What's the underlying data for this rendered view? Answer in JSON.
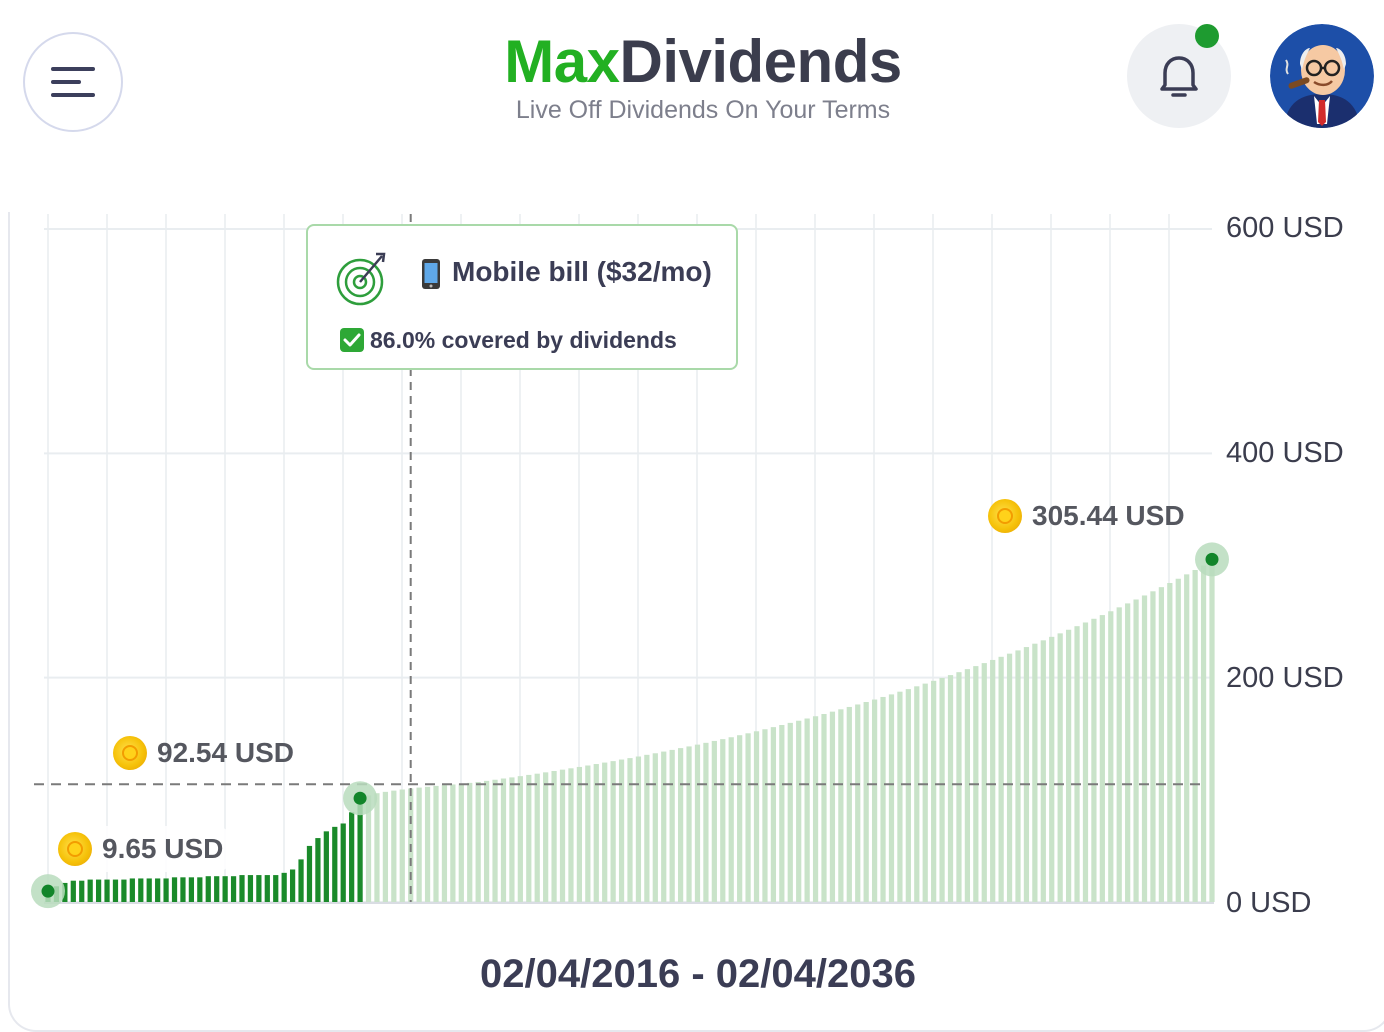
{
  "header": {
    "brand_part1": "Max",
    "brand_part2": "Dividends",
    "tagline": "Live Off Dividends On Your Terms",
    "menu_icon": "hamburger-icon",
    "notification_icon": "bell-icon",
    "notification_badge_color": "#1e9b30"
  },
  "colors": {
    "brand_green": "#22b022",
    "bar_past": "#1a8a2a",
    "bar_future": "#c9e3c9",
    "text_dark": "#3b3d55"
  },
  "tooltip": {
    "goal_icon": "target-icon",
    "phone_icon": "mobile-phone-icon",
    "title": "Mobile bill ($32/mo)",
    "check_icon": "check-mark-icon",
    "subtitle": "86.0% covered by dividends"
  },
  "markers": {
    "start": "9.65 USD",
    "current": "92.54 USD",
    "end": "305.44 USD"
  },
  "date_range": "02/04/2016 - 02/04/2036",
  "chart_data": {
    "type": "bar",
    "x_start": "02/04/2016",
    "x_end": "02/04/2036",
    "y_tick_labels": [
      "600 USD",
      "400 USD",
      "200 USD",
      "0 USD"
    ],
    "y_ticks": [
      600,
      400,
      200,
      0
    ],
    "ylim": [
      0,
      600
    ],
    "grid": true,
    "goal_line": 105,
    "start_value": 9.65,
    "current_value": 92.54,
    "end_value": 305.44,
    "values": [
      9.65,
      14,
      17,
      19,
      19,
      20,
      20,
      20,
      20,
      20,
      21,
      21,
      21,
      21,
      21,
      22,
      22,
      22,
      22,
      23,
      23,
      23,
      23,
      24,
      24,
      24,
      24,
      24,
      26,
      29,
      38,
      50,
      57,
      63,
      67,
      70,
      80,
      92.54,
      95,
      97,
      98.2,
      99.3,
      100.3,
      101.2,
      102.0,
      102.7,
      103.5,
      104.2,
      104.8,
      105.5,
      106.2,
      107.0,
      108.0,
      109.0,
      110.1,
      111.1,
      112.2,
      113.3,
      114.4,
      115.6,
      116.8,
      118.0,
      119.2,
      120.4,
      121.7,
      123.0,
      124.3,
      125.6,
      127.0,
      128.3,
      129.7,
      131.2,
      132.6,
      134.1,
      135.6,
      137.2,
      138.7,
      140.3,
      141.9,
      143.6,
      145.2,
      146.9,
      148.7,
      150.4,
      152.2,
      154.0,
      155.9,
      157.8,
      159.7,
      161.6,
      163.6,
      165.6,
      167.6,
      169.7,
      171.8,
      173.9,
      176.1,
      178.3,
      180.5,
      182.8,
      185.1,
      187.5,
      189.8,
      192.3,
      194.7,
      197.2,
      199.7,
      202.3,
      204.9,
      207.6,
      210.3,
      213.0,
      215.8,
      218.6,
      221.4,
      224.3,
      227.3,
      230.3,
      233.3,
      236.4,
      239.5,
      242.7,
      245.9,
      249.2,
      252.5,
      255.8,
      259.2,
      262.7,
      266.2,
      269.7,
      273.3,
      277.0,
      280.7,
      284.4,
      288.2,
      292.1,
      296.0,
      300.0,
      305.44
    ],
    "past_count": 38
  }
}
